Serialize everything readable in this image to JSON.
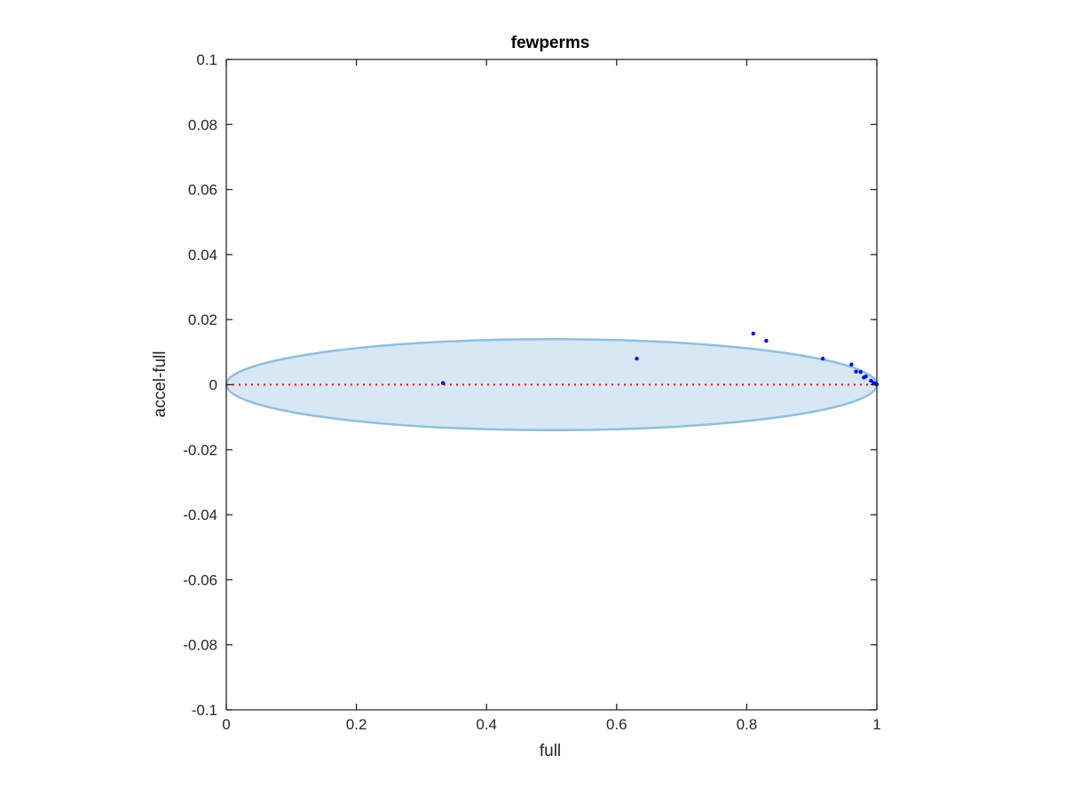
{
  "chart_data": {
    "type": "scatter",
    "title": "fewperms",
    "xlabel": "full",
    "ylabel": "accel-full",
    "xlim": [
      0,
      1
    ],
    "ylim": [
      -0.1,
      0.1
    ],
    "x_ticks": [
      0,
      0.2,
      0.4,
      0.6,
      0.8,
      1
    ],
    "x_tick_labels": [
      "0",
      "0.2",
      "0.4",
      "0.6",
      "0.8",
      "1"
    ],
    "y_ticks": [
      -0.1,
      -0.08,
      -0.06,
      -0.04,
      -0.02,
      0,
      0.02,
      0.04,
      0.06,
      0.08,
      0.1
    ],
    "y_tick_labels": [
      "-0.1",
      "-0.08",
      "-0.06",
      "-0.04",
      "-0.02",
      "0",
      "0.02",
      "0.04",
      "0.06",
      "0.08",
      "0.1"
    ],
    "grid": false,
    "points": [
      {
        "x": 0.333,
        "y": 0.0005
      },
      {
        "x": 0.631,
        "y": 0.008
      },
      {
        "x": 0.81,
        "y": 0.0157
      },
      {
        "x": 0.83,
        "y": 0.0135
      },
      {
        "x": 0.917,
        "y": 0.008
      },
      {
        "x": 0.961,
        "y": 0.0062
      },
      {
        "x": 0.968,
        "y": 0.004
      },
      {
        "x": 0.975,
        "y": 0.0039
      },
      {
        "x": 0.98,
        "y": 0.0022
      },
      {
        "x": 0.983,
        "y": 0.0025
      },
      {
        "x": 0.991,
        "y": 0.0012
      },
      {
        "x": 0.995,
        "y": 0.0005
      },
      {
        "x": 0.998,
        "y": 0.0003
      },
      {
        "x": 1.0,
        "y": 0.0001
      }
    ],
    "ellipse": {
      "cx": 0.5,
      "cy": 0,
      "rx": 0.5,
      "ry": 0.014,
      "fill_color": "#d7e7f4",
      "stroke_color": "#8fbfe0"
    },
    "reference_line": {
      "y": 0,
      "style": "dotted",
      "color": "#ff0000"
    },
    "colors": {
      "points": "#0000ff",
      "axes": "#262626"
    }
  }
}
